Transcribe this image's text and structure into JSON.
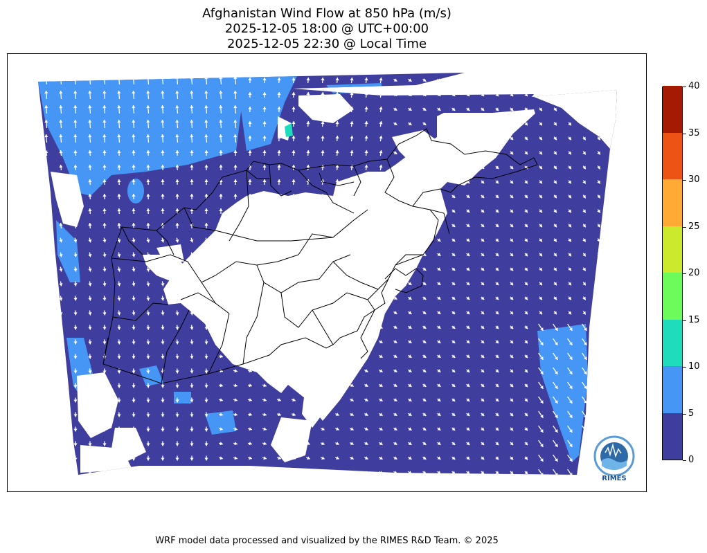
{
  "title": {
    "line1": "Afghanistan Wind Flow at 850 hPa (m/s)",
    "line2": "2025-12-05 18:00 @ UTC+00:00",
    "line3": "2025-12-05 22:30 @ Local Time"
  },
  "colorbar": {
    "ticks": [
      "0",
      "5",
      "10",
      "15",
      "20",
      "25",
      "30",
      "35",
      "40"
    ],
    "colors": [
      "#3f3d9e",
      "#4596f5",
      "#1fdcbc",
      "#6dfb5b",
      "#cde92d",
      "#feaa35",
      "#ec5314",
      "#a41a03"
    ]
  },
  "map": {
    "fill_colors": {
      "calm": "#3f3d9e",
      "light": "#4596f5",
      "moderate": "#1fdcbc",
      "terrain": "#ffffff"
    },
    "arrow_color": "#ffffff",
    "border_color": "#000000"
  },
  "logo": {
    "text": "RIMES"
  },
  "footer": "WRF model data processed and visualized by the RIMES R&D Team. © 2025"
}
